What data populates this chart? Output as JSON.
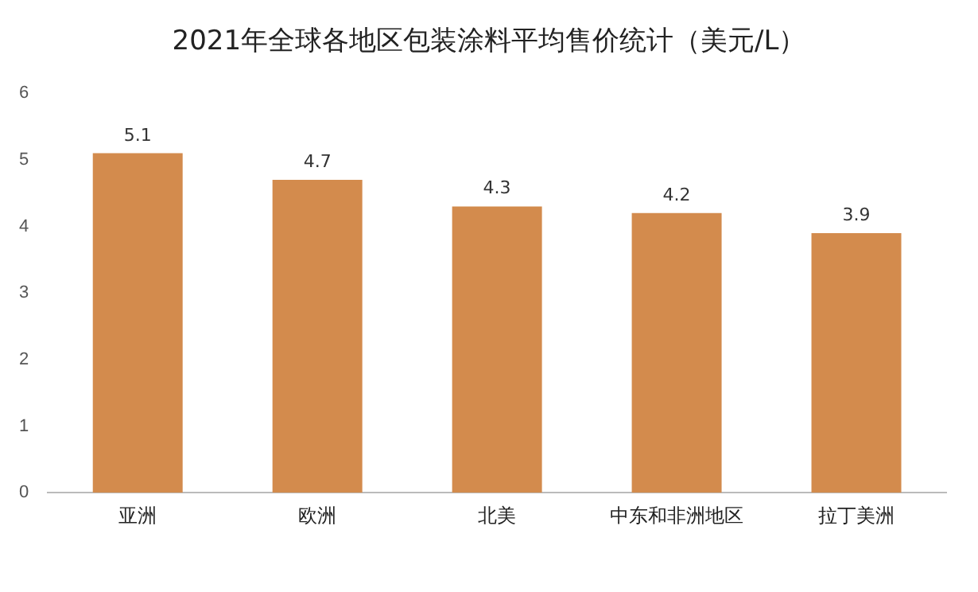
{
  "chart_data": {
    "type": "bar",
    "title": "2021年全球各地区包装涂料平均售价统计（美元/L）",
    "categories": [
      "亚洲",
      "欧洲",
      "北美",
      "中东和非洲地区",
      "拉丁美洲"
    ],
    "values": [
      5.1,
      4.7,
      4.3,
      4.2,
      3.9
    ],
    "color": "#d38b4d",
    "ylim": [
      0,
      6
    ],
    "yticks": [
      0,
      1,
      2,
      3,
      4,
      5,
      6
    ],
    "grid": false,
    "legend": false,
    "data_labels": true
  }
}
